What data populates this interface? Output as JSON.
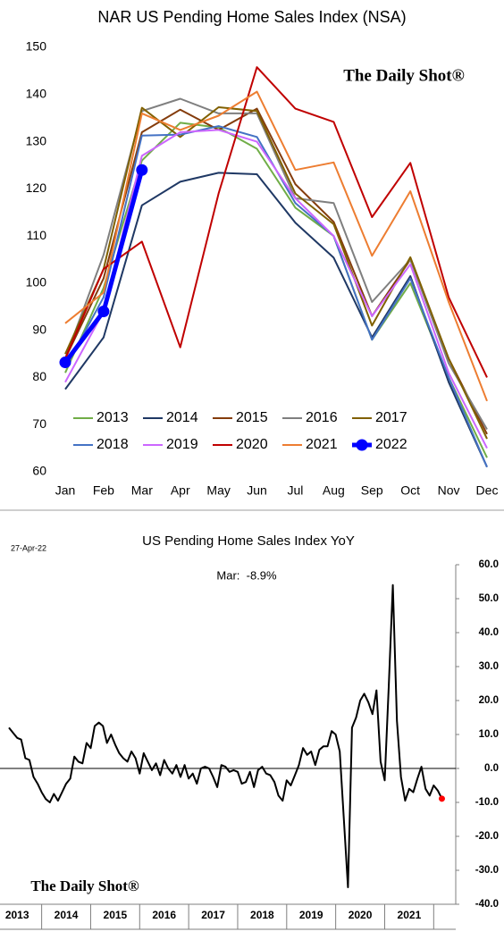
{
  "chart_data": [
    {
      "type": "line",
      "title": "NAR US Pending Home Sales Index (NSA)",
      "watermark": "The Daily Shot®",
      "categories": [
        "Jan",
        "Feb",
        "Mar",
        "Apr",
        "May",
        "Jun",
        "Jul",
        "Aug",
        "Sep",
        "Oct",
        "Nov",
        "Dec"
      ],
      "ylim": [
        60,
        150
      ],
      "yticks": [
        60,
        70,
        80,
        90,
        100,
        110,
        120,
        130,
        140,
        150
      ],
      "grid": false,
      "legend": "bottom",
      "series": [
        {
          "name": "2013",
          "color": "#70ad47",
          "values": [
            81,
            99,
            126,
            134,
            133,
            128.5,
            116,
            110,
            88,
            100,
            80,
            63
          ]
        },
        {
          "name": "2014",
          "color": "#1f3864",
          "values": [
            77.5,
            88.5,
            116.5,
            121.5,
            123.4,
            123.1,
            112.8,
            105.4,
            88.5,
            101.5,
            79,
            61
          ]
        },
        {
          "name": "2015",
          "color": "#843c0c",
          "values": [
            84,
            101,
            132,
            136.8,
            132.5,
            137,
            121,
            113,
            93,
            105,
            84,
            68
          ]
        },
        {
          "name": "2016",
          "color": "#7f7f7f",
          "values": [
            84,
            106,
            136.5,
            139.1,
            136,
            136,
            118,
            117,
            96,
            105,
            83,
            69
          ]
        },
        {
          "name": "2017",
          "color": "#806000",
          "values": [
            85,
            103,
            137.2,
            131,
            137.3,
            136.5,
            119,
            112.5,
            91,
            105.5,
            84,
            67
          ]
        },
        {
          "name": "2018",
          "color": "#4472c4",
          "values": [
            82,
            97,
            131.3,
            131.5,
            133.3,
            131,
            117,
            110,
            88,
            101,
            80,
            61
          ]
        },
        {
          "name": "2019",
          "color": "#cc66ff",
          "values": [
            79,
            94,
            127,
            132,
            132.5,
            130,
            118,
            110,
            93,
            104,
            81,
            65
          ]
        },
        {
          "name": "2020",
          "color": "#c00000",
          "values": [
            84,
            103,
            108.8,
            86.4,
            119,
            145.8,
            137,
            134.2,
            114,
            125.5,
            97,
            80
          ]
        },
        {
          "name": "2021",
          "color": "#ed7d31",
          "values": [
            91.5,
            98,
            136,
            132.5,
            135.5,
            140.6,
            124,
            125.6,
            105.8,
            119.5,
            96,
            75
          ]
        },
        {
          "name": "2022",
          "color": "#0000ff",
          "line_width": 5,
          "marker": true,
          "values": [
            83.2,
            94,
            124,
            null,
            null,
            null,
            null,
            null,
            null,
            null,
            null,
            null
          ]
        }
      ]
    },
    {
      "type": "line",
      "title": "US Pending Home Sales Index YoY",
      "date": "27-Apr-22",
      "annotation": "Mar:  -8.9%",
      "watermark": "The Daily Shot®",
      "yaxis": "right",
      "zero_line": true,
      "grid": false,
      "ylim": [
        -40,
        60
      ],
      "yticks": [
        {
          "value": 60,
          "label": "60.0"
        },
        {
          "value": 50,
          "label": "50.0"
        },
        {
          "value": 40,
          "label": "40.0"
        },
        {
          "value": 30,
          "label": "30.0"
        },
        {
          "value": 20,
          "label": "20.0"
        },
        {
          "value": 10,
          "label": "10.0"
        },
        {
          "value": 0,
          "label": "0.0"
        },
        {
          "value": -10,
          "label": "-10.0"
        },
        {
          "value": -20,
          "label": "-20.0"
        },
        {
          "value": -30,
          "label": "-30.0"
        },
        {
          "value": -40,
          "label": "-40.0"
        }
      ],
      "xlim": [
        2013.15,
        2022.45
      ],
      "xticks": [
        {
          "value": 2013.5,
          "label": "2013"
        },
        {
          "value": 2014.5,
          "label": "2014"
        },
        {
          "value": 2015.5,
          "label": "2015"
        },
        {
          "value": 2016.5,
          "label": "2016"
        },
        {
          "value": 2017.5,
          "label": "2017"
        },
        {
          "value": 2018.5,
          "label": "2018"
        },
        {
          "value": 2019.5,
          "label": "2019"
        },
        {
          "value": 2020.5,
          "label": "2020"
        },
        {
          "value": 2021.5,
          "label": "2021"
        }
      ],
      "x": [
        2013.333,
        2013.417,
        2013.5,
        2013.583,
        2013.667,
        2013.75,
        2013.833,
        2013.917,
        2014,
        2014.083,
        2014.167,
        2014.25,
        2014.333,
        2014.417,
        2014.5,
        2014.583,
        2014.667,
        2014.75,
        2014.833,
        2014.917,
        2015,
        2015.083,
        2015.167,
        2015.25,
        2015.333,
        2015.417,
        2015.5,
        2015.583,
        2015.667,
        2015.75,
        2015.833,
        2015.917,
        2016,
        2016.083,
        2016.167,
        2016.25,
        2016.333,
        2016.417,
        2016.5,
        2016.583,
        2016.667,
        2016.75,
        2016.833,
        2016.917,
        2017,
        2017.083,
        2017.167,
        2017.25,
        2017.333,
        2017.417,
        2017.5,
        2017.583,
        2017.667,
        2017.75,
        2017.833,
        2017.917,
        2018,
        2018.083,
        2018.167,
        2018.25,
        2018.333,
        2018.417,
        2018.5,
        2018.583,
        2018.667,
        2018.75,
        2018.833,
        2018.917,
        2019,
        2019.083,
        2019.167,
        2019.25,
        2019.333,
        2019.417,
        2019.5,
        2019.583,
        2019.667,
        2019.75,
        2019.833,
        2019.917,
        2020,
        2020.083,
        2020.167,
        2020.25,
        2020.333,
        2020.417,
        2020.5,
        2020.583,
        2020.667,
        2020.75,
        2020.833,
        2020.917,
        2021,
        2021.083,
        2021.167,
        2021.25,
        2021.333,
        2021.417,
        2021.5,
        2021.583,
        2021.667,
        2021.75,
        2021.833,
        2021.917,
        2022,
        2022.083,
        2022.167
      ],
      "series": [
        {
          "name": "YoY",
          "color": "#000000",
          "highlight_last": "#ff0000",
          "values": [
            12,
            10.5,
            9,
            8.5,
            3,
            2.5,
            -2.5,
            -4.5,
            -7,
            -9,
            -10,
            -7.5,
            -9.5,
            -7,
            -4.5,
            -3,
            3.5,
            2,
            1.5,
            7.5,
            6,
            12.5,
            13.5,
            12.5,
            7.5,
            10,
            7,
            4.5,
            3,
            2,
            5,
            3,
            -1.5,
            4.5,
            2,
            -0.5,
            1.5,
            -2,
            2.5,
            0,
            -1.5,
            1,
            -2.5,
            1,
            -3,
            -1.5,
            -4.5,
            0,
            0.5,
            0,
            -2.5,
            -5.5,
            1,
            0.5,
            -1,
            -0.5,
            -1,
            -4.5,
            -4,
            -1,
            -5.5,
            -0.5,
            0.5,
            -1.5,
            -2,
            -4,
            -8,
            -9.5,
            -3.5,
            -5,
            -2,
            1,
            6,
            4,
            5,
            1,
            5.5,
            6.5,
            6.5,
            11,
            10,
            5,
            -15,
            -35,
            12,
            15,
            20,
            22,
            19.5,
            16,
            23,
            2,
            -3.5,
            24,
            54,
            14,
            -2.5,
            -9.5,
            -6,
            -7,
            -3,
            0.5,
            -6,
            -8,
            -5,
            -6.5,
            -8.9
          ]
        }
      ]
    }
  ]
}
